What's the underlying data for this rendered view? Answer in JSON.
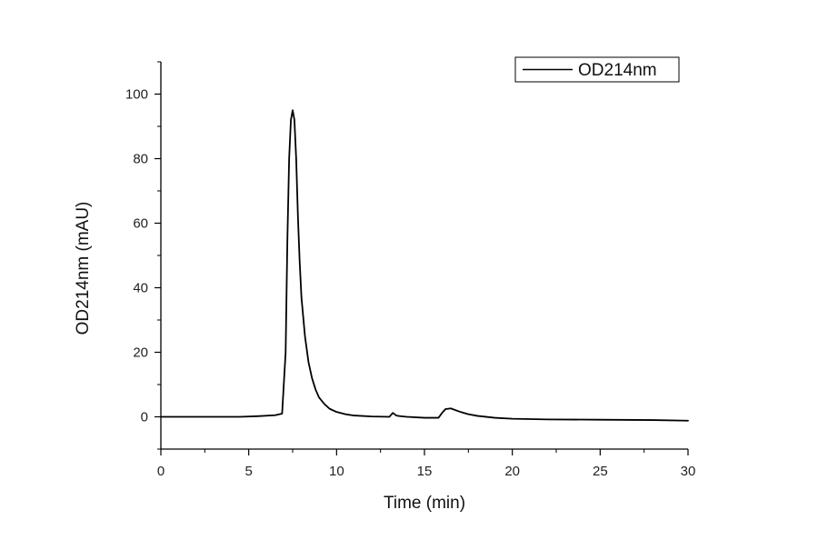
{
  "chart_data": {
    "type": "line",
    "xlabel": "Time (min)",
    "ylabel": "OD214nm (mAU)",
    "xlim": [
      0,
      30
    ],
    "ylim": [
      -10,
      110
    ],
    "xticks": [
      0,
      5,
      10,
      15,
      20,
      25,
      30
    ],
    "yticks": [
      0,
      20,
      40,
      60,
      80,
      100
    ],
    "grid": false,
    "legend": "top-right",
    "series": [
      {
        "name": "OD214nm",
        "color": "#000000",
        "x": [
          0,
          4.5,
          5.5,
          6.5,
          6.9,
          7.1,
          7.2,
          7.3,
          7.4,
          7.5,
          7.6,
          7.7,
          7.8,
          7.9,
          8.0,
          8.2,
          8.4,
          8.6,
          8.8,
          9.0,
          9.3,
          9.6,
          10.0,
          10.5,
          11.0,
          12.0,
          13.0,
          13.2,
          13.4,
          13.6,
          14.0,
          15.0,
          15.8,
          16.0,
          16.2,
          16.5,
          17.0,
          17.5,
          18.0,
          19.0,
          20.0,
          22.0,
          25.0,
          28.0,
          30.0
        ],
        "values": [
          0,
          0,
          0.2,
          0.5,
          1.0,
          20,
          55,
          80,
          92,
          95,
          92,
          80,
          62,
          48,
          37,
          25,
          17,
          12,
          8.5,
          6,
          4,
          2.5,
          1.5,
          0.8,
          0.4,
          0.1,
          0,
          1.2,
          0.4,
          0.2,
          0,
          -0.3,
          -0.3,
          1.2,
          2.4,
          2.6,
          1.6,
          0.8,
          0.3,
          -0.3,
          -0.6,
          -0.8,
          -0.9,
          -1.0,
          -1.2
        ]
      }
    ]
  }
}
